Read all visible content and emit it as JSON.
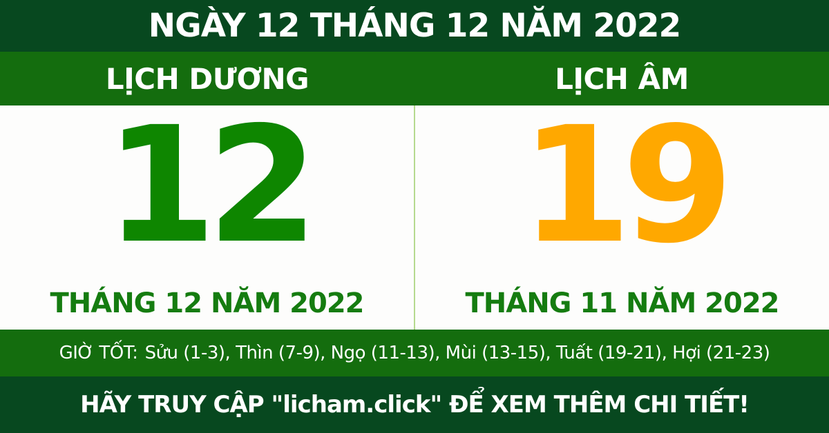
{
  "colors": {
    "dark_green": "#07481f",
    "band_green": "#146d0e",
    "number_green": "#0e8600",
    "label_green": "#157c10",
    "orange": "#ffa800",
    "divider": "#b5da8e",
    "panel_bg": "#fdfdfc"
  },
  "header": {
    "title": "NGÀY 12 THÁNG 12 NĂM 2022"
  },
  "calendar": {
    "solar": {
      "label": "LỊCH DƯƠNG",
      "day": "12",
      "month_year": "THÁNG 12 NĂM 2022"
    },
    "lunar": {
      "label": "LỊCH ÂM",
      "day": "19",
      "month_year": "THÁNG 11 NĂM 2022"
    }
  },
  "good_hours": {
    "label": "GIỜ TỐT:",
    "hours": "Sửu (1-3), Thìn (7-9), Ngọ (11-13), Mùi (13-15), Tuất (19-21), Hợi (21-23)",
    "items": [
      {
        "name": "Sửu",
        "range": "1-3"
      },
      {
        "name": "Thìn",
        "range": "7-9"
      },
      {
        "name": "Ngọ",
        "range": "11-13"
      },
      {
        "name": "Mùi",
        "range": "13-15"
      },
      {
        "name": "Tuất",
        "range": "19-21"
      },
      {
        "name": "Hợi",
        "range": "21-23"
      }
    ]
  },
  "footer": {
    "text": "HÃY TRUY CẬP \"licham.click\" ĐỂ XEM THÊM CHI TIẾT!"
  }
}
